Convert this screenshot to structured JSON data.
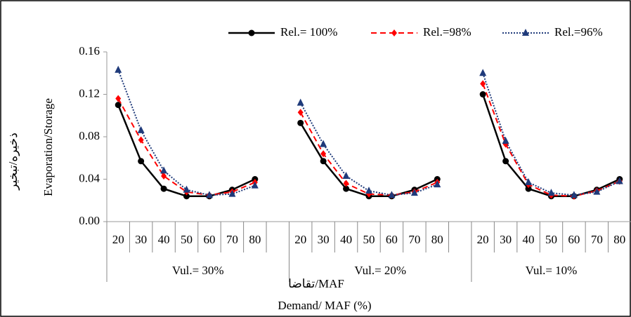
{
  "chart_data": {
    "type": "line",
    "y_label": "Evaporation/Storage",
    "y_label_2": "ذخیره/تبخیر",
    "x_label": "Demand/ MAF (%)",
    "x_label_2": "تقاضا/MAF",
    "group_labels": [
      "Vul.= 30%",
      "Vul.= 20%",
      "Vul.= 10%"
    ],
    "categories": [
      20,
      30,
      40,
      50,
      60,
      70,
      80,
      null,
      20,
      30,
      40,
      50,
      60,
      70,
      80,
      null,
      20,
      30,
      40,
      50,
      60,
      70,
      80
    ],
    "ylim": [
      0,
      0.16
    ],
    "yticks": [
      {
        "value": 0,
        "label": "0.00"
      },
      {
        "value": 0.04,
        "label": "0.04"
      },
      {
        "value": 0.08,
        "label": "0.08"
      },
      {
        "value": 0.12,
        "label": "0.12"
      },
      {
        "value": 0.16,
        "label": "0.16"
      }
    ],
    "grid": false,
    "series": [
      {
        "name": "Rel.= 100%",
        "color": "#000000",
        "values": [
          0.11,
          0.057,
          0.031,
          0.024,
          0.024,
          0.03,
          0.04,
          null,
          0.093,
          0.057,
          0.031,
          0.024,
          0.024,
          0.03,
          0.04,
          null,
          0.12,
          0.057,
          0.031,
          0.024,
          0.024,
          0.03,
          0.04
        ]
      },
      {
        "name": "Rel.=98%",
        "color": "#ff0000",
        "values": [
          0.116,
          0.077,
          0.043,
          0.028,
          0.025,
          0.028,
          0.037,
          null,
          0.103,
          0.064,
          0.036,
          0.026,
          0.025,
          0.028,
          0.037,
          null,
          0.13,
          0.073,
          0.035,
          0.025,
          0.024,
          0.029,
          0.038
        ]
      },
      {
        "name": "Rel.=96%",
        "color": "#1f3a7a",
        "values": [
          0.143,
          0.086,
          0.048,
          0.03,
          0.025,
          0.026,
          0.034,
          null,
          0.112,
          0.073,
          0.043,
          0.029,
          0.025,
          0.027,
          0.035,
          null,
          0.14,
          0.076,
          0.037,
          0.027,
          0.025,
          0.028,
          0.038
        ]
      }
    ]
  }
}
